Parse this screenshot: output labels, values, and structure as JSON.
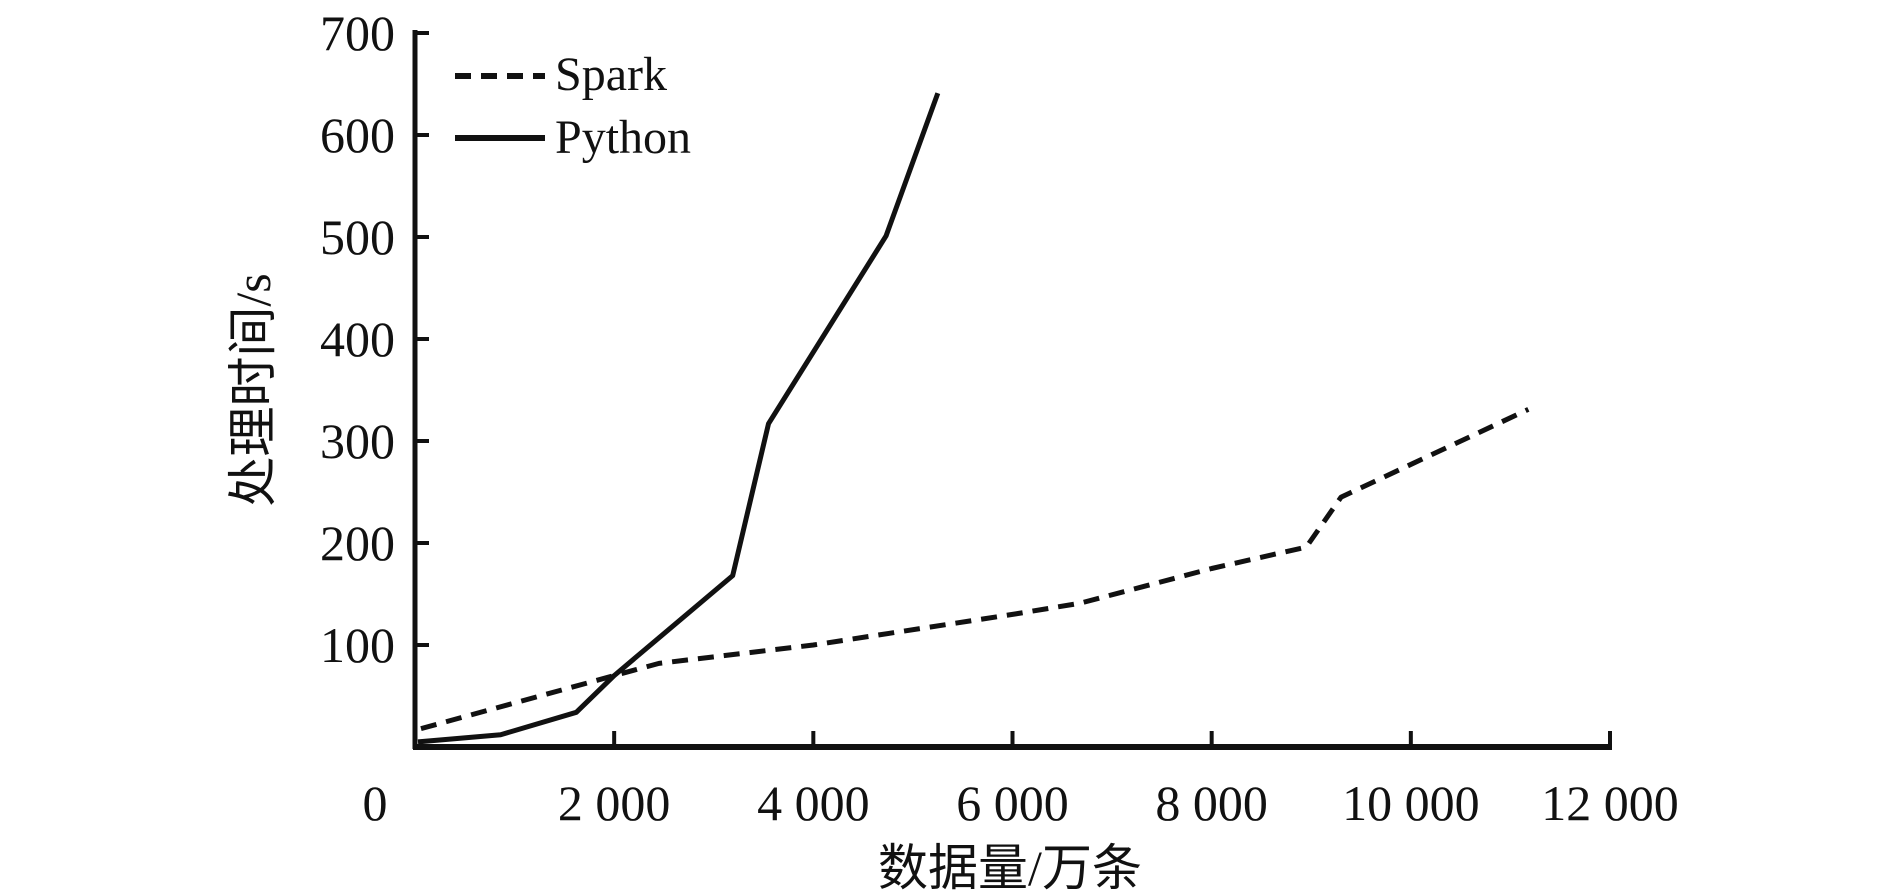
{
  "chart_data": {
    "type": "line",
    "title": "",
    "xlabel": "数据量/万条",
    "ylabel": "处理时间/s",
    "xlim": [
      0,
      12000
    ],
    "ylim": [
      0,
      700
    ],
    "x_ticks": [
      0,
      2000,
      4000,
      6000,
      8000,
      10000,
      12000
    ],
    "x_tick_labels": [
      "0",
      "2 000",
      "4 000",
      "6 000",
      "8 000",
      "10 000",
      "12 000"
    ],
    "y_ticks": [
      100,
      200,
      300,
      400,
      500,
      600,
      700
    ],
    "y_tick_labels": [
      "100",
      "200",
      "300",
      "400",
      "500",
      "600",
      "700"
    ],
    "grid": false,
    "legend": {
      "position": "top-left",
      "entries": [
        "Spark",
        "Python"
      ]
    },
    "series": [
      {
        "name": "Spark",
        "style": "dashed",
        "x": [
          60,
          2000,
          2450,
          4000,
          6000,
          6680,
          8000,
          8950,
          9300,
          11180
        ],
        "y": [
          18,
          70,
          82,
          100,
          130,
          141,
          175,
          196,
          245,
          331
        ]
      },
      {
        "name": "Python",
        "style": "solid",
        "x": [
          30,
          860,
          1620,
          2000,
          3190,
          3550,
          4730,
          5250
        ],
        "y": [
          5,
          12,
          34,
          70,
          168,
          317,
          501,
          641
        ]
      }
    ]
  }
}
